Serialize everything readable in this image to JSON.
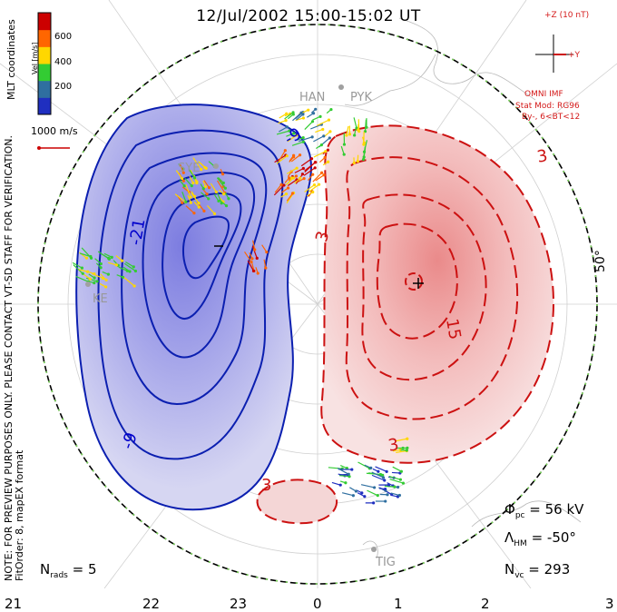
{
  "title": "12/Jul/2002 15:00-15:02 UT",
  "legend": {
    "unit_label": "Vel [m/s]",
    "ticks": [
      "600",
      "400",
      "200"
    ],
    "colors": [
      "#cc0000",
      "#ff6600",
      "#ffd700",
      "#33cc33",
      "#2f6fa0",
      "#1f2fc0"
    ]
  },
  "coordinates_label": "MLT coordinates",
  "scale_label": "1000 m/s",
  "note": {
    "line1": "NOTE: FOR PREVIEW PURPOSES ONLY. PLEASE CONTACT VT-SD STAFF FOR VERIFICATION.",
    "line2": "FitOrder: 8, mapEX format"
  },
  "imf": {
    "z_label": "+Z (10 nT)",
    "y_label": "+Y",
    "source": "OMNI IMF",
    "stat_model": "Stat Mod: RG96",
    "condition": "By-, 6<BT<12"
  },
  "stats": {
    "nrads_label": "N",
    "nrads_sub": "rads",
    "nrads_value": "= 5",
    "phi_label": "Φ",
    "phi_sub": "pc",
    "phi_value": "= 56 kV",
    "lambda_label": "Λ",
    "lambda_sub": "HM",
    "lambda_value": "= -50°",
    "nvc_label": "N",
    "nvc_sub": "vc",
    "nvc_value": "= 293"
  },
  "latitude_label": "50°",
  "mlt_ticks": [
    "21",
    "22",
    "23",
    "0",
    "1",
    "2",
    "3"
  ],
  "stations": [
    "SYE",
    "KE",
    "TIG",
    "HAN",
    "PYK"
  ],
  "contour_labels": {
    "blue": [
      "-21",
      "-9",
      "-9"
    ],
    "red": [
      "3",
      "3",
      "15",
      "3",
      "3"
    ],
    "min_marker": "−",
    "max_marker": "+"
  },
  "colors": {
    "negative_fill": "#c8c8ec",
    "negative_core": "#9090e0",
    "negative_line": "#0b1fb0",
    "positive_fill": "#f4d6d6",
    "positive_core": "#ee9f9f",
    "positive_line": "#cc1111"
  }
}
